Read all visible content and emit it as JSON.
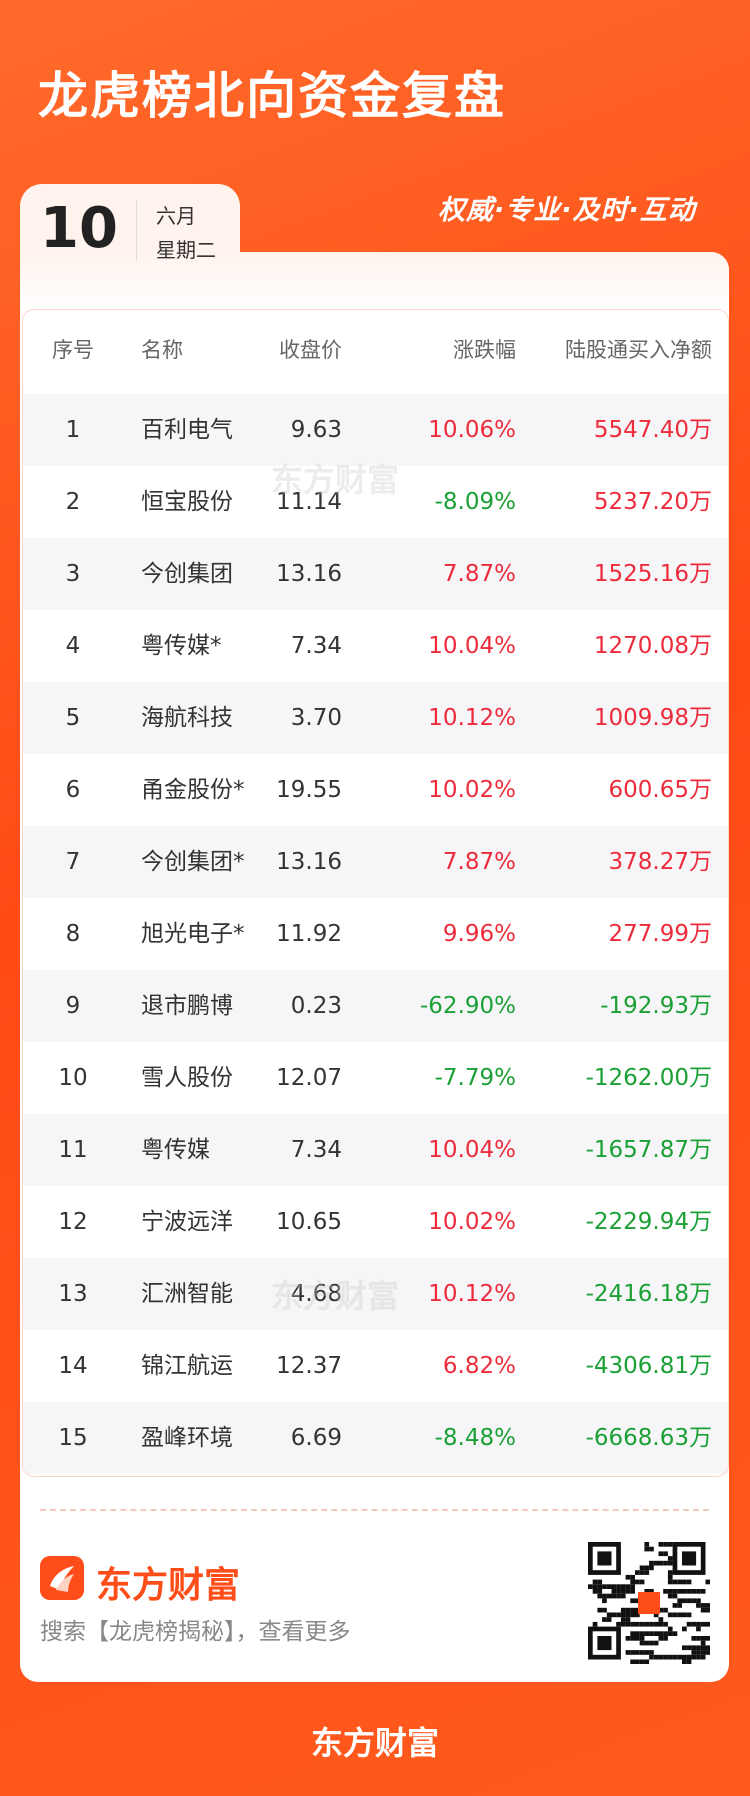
{
  "header": {
    "title": "龙虎榜北向资金复盘",
    "slogan": "权威·专业·及时·互动"
  },
  "date": {
    "day": "10",
    "month": "六月",
    "weekday": "星期二"
  },
  "watermark": "东方财富",
  "table": {
    "columns": [
      "序号",
      "名称",
      "收盘价",
      "涨跌幅",
      "陆股通买入净额"
    ],
    "rows": [
      [
        "1",
        "百利电气",
        "9.63",
        "10.06%",
        "5547.40万"
      ],
      [
        "2",
        "恒宝股份",
        "11.14",
        "-8.09%",
        "5237.20万"
      ],
      [
        "3",
        "今创集团",
        "13.16",
        "7.87%",
        "1525.16万"
      ],
      [
        "4",
        "粤传媒*",
        "7.34",
        "10.04%",
        "1270.08万"
      ],
      [
        "5",
        "海航科技",
        "3.70",
        "10.12%",
        "1009.98万"
      ],
      [
        "6",
        "甬金股份*",
        "19.55",
        "10.02%",
        "600.65万"
      ],
      [
        "7",
        "今创集团*",
        "13.16",
        "7.87%",
        "378.27万"
      ],
      [
        "8",
        "旭光电子*",
        "11.92",
        "9.96%",
        "277.99万"
      ],
      [
        "9",
        "退市鹏博",
        "0.23",
        "-62.90%",
        "-192.93万"
      ],
      [
        "10",
        "雪人股份",
        "12.07",
        "-7.79%",
        "-1262.00万"
      ],
      [
        "11",
        "粤传媒",
        "7.34",
        "10.04%",
        "-1657.87万"
      ],
      [
        "12",
        "宁波远洋",
        "10.65",
        "10.02%",
        "-2229.94万"
      ],
      [
        "13",
        "汇洲智能",
        "4.68",
        "10.12%",
        "-2416.18万"
      ],
      [
        "14",
        "锦江航运",
        "12.37",
        "6.82%",
        "-4306.81万"
      ],
      [
        "15",
        "盈峰环境",
        "6.69",
        "-8.48%",
        "-6668.63万"
      ]
    ]
  },
  "footer": {
    "brand": "东方财富",
    "search": "搜索【龙虎榜揭秘】，查看更多",
    "bottom_brand": "东方财富"
  }
}
